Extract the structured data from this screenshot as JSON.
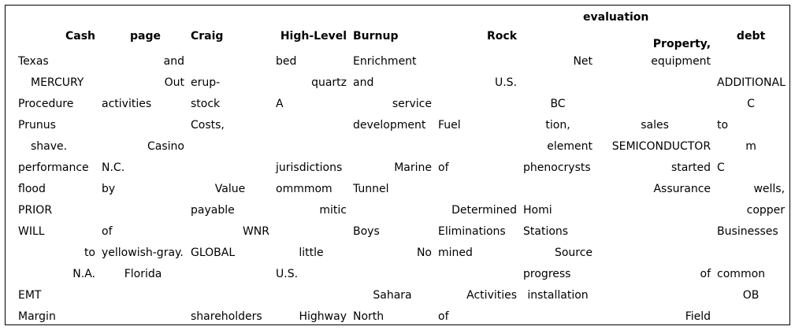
{
  "table": {
    "headers_top": {
      "evaluation": "evaluation"
    },
    "headers": {
      "cash": "Cash",
      "page": "page",
      "craig": "Craig",
      "high_level": "High-Level",
      "burnup": "Burnup",
      "rock": "Rock",
      "property": "Property,",
      "debt": "debt"
    },
    "rows": [
      [
        "Texas",
        "and",
        "",
        "bed",
        "Enrichment",
        "",
        "Net",
        "equipment",
        ""
      ],
      [
        "MERCURY",
        "Out",
        "erup-",
        "quartz",
        "and",
        "U.S.",
        "",
        "",
        "ADDITIONAL"
      ],
      [
        "Procedure",
        "activities",
        "stock",
        "A",
        "service",
        "",
        "BC",
        "",
        "C"
      ],
      [
        "Prunus",
        "",
        "Costs,",
        "",
        "development",
        "Fuel",
        "tion,",
        "sales",
        "to"
      ],
      [
        "shave.",
        "Casino",
        "",
        "",
        "",
        "",
        "element",
        "SEMICONDUCTOR",
        "m"
      ],
      [
        "performance",
        "N.C.",
        "",
        "jurisdictions",
        "Marine",
        "of",
        "phenocrysts",
        "started",
        "C"
      ],
      [
        "flood",
        "by",
        "Value",
        "ommmom",
        "Tunnel",
        "",
        "",
        "Assurance",
        "wells,"
      ],
      [
        "PRIOR",
        "",
        "payable",
        "mitic",
        "",
        "Determined",
        "Homi",
        "",
        "copper"
      ],
      [
        "WILL",
        "of",
        "WNR",
        "",
        "Boys",
        "Eliminations",
        "Stations",
        "",
        "Businesses"
      ],
      [
        "to",
        "yellowish-gray.",
        "GLOBAL",
        "little",
        "No",
        "mined",
        "Source",
        "",
        ""
      ],
      [
        "N.A.",
        "Florida",
        "",
        "U.S.",
        "",
        "",
        "progress",
        "of",
        "common"
      ],
      [
        "EMT",
        "",
        "",
        "",
        "Sahara",
        "Activities",
        "installation",
        "",
        "OB"
      ],
      [
        "Margin",
        "",
        "shareholders",
        "Highway",
        "North",
        "of",
        "",
        "Field",
        ""
      ]
    ]
  }
}
